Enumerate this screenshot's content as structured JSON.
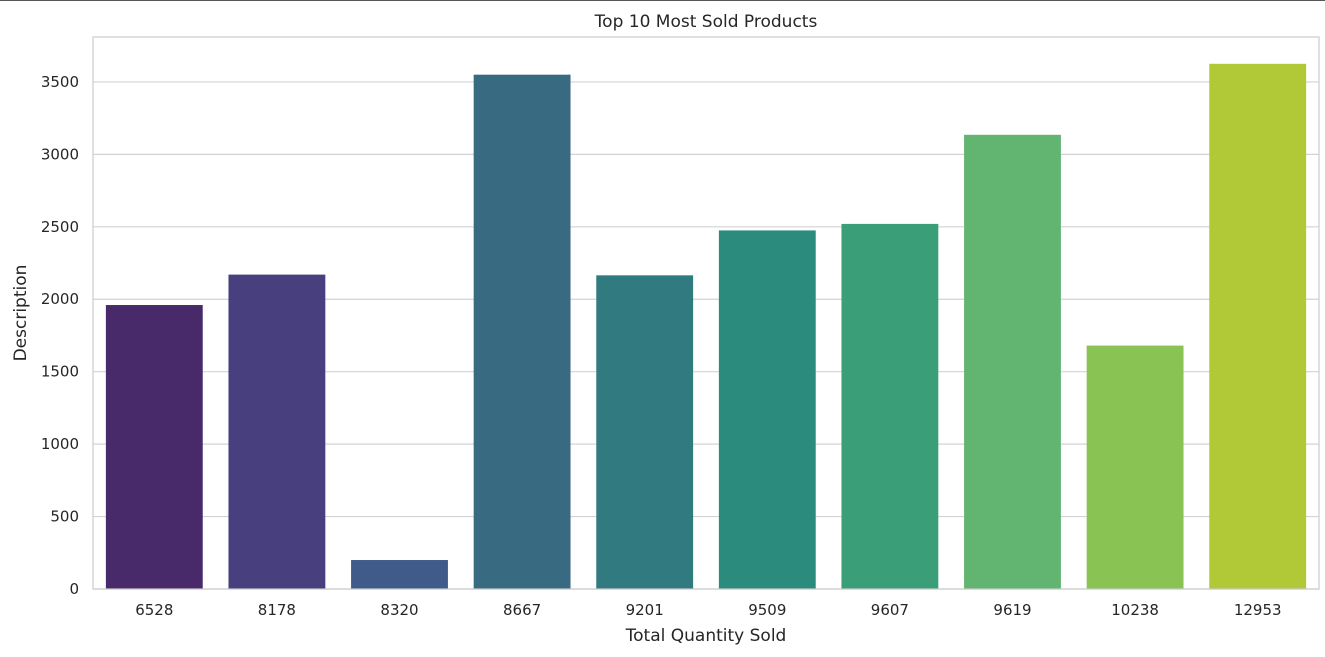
{
  "chart_data": {
    "type": "bar",
    "title": "Top 10 Most Sold Products",
    "xlabel": "Total Quantity Sold",
    "ylabel": "Description",
    "categories": [
      "6528",
      "8178",
      "8320",
      "8667",
      "9201",
      "9509",
      "9607",
      "9619",
      "10238",
      "12953"
    ],
    "values": [
      1960,
      2170,
      200,
      3550,
      2165,
      2475,
      2520,
      3135,
      1680,
      3625
    ],
    "colors": [
      "#482a6a",
      "#473f7e",
      "#405a8a",
      "#386a81",
      "#307a80",
      "#2b8c7e",
      "#3a9f78",
      "#62b570",
      "#89c354",
      "#b1c936"
    ],
    "ylim": [
      0,
      3810
    ],
    "yticks": [
      0,
      500,
      1000,
      1500,
      2000,
      2500,
      3000,
      3500
    ],
    "grid": true,
    "legend": "none"
  }
}
